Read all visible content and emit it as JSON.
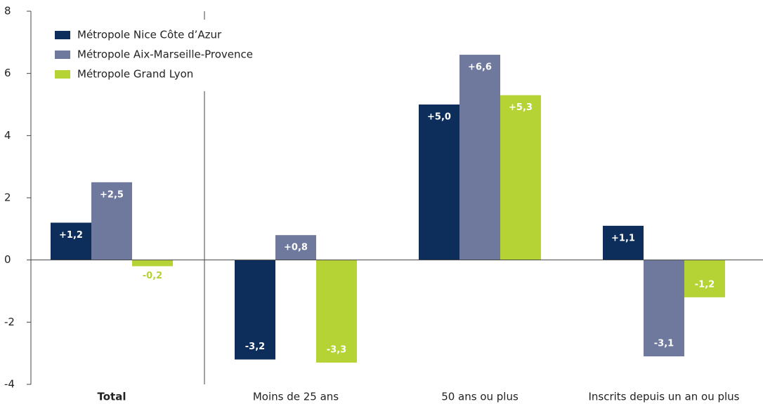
{
  "chart_data": {
    "type": "bar",
    "categories": [
      "Total",
      "Moins de 25 ans",
      "50 ans ou plus",
      "Inscrits depuis un an ou plus"
    ],
    "series": [
      {
        "name": "Métropole Nice Côte d’Azur",
        "color": "#0d2d5a",
        "values": [
          1.2,
          -3.2,
          5.0,
          1.1
        ],
        "value_labels": [
          "+1,2",
          "-3,2",
          "+5,0",
          "+1,1"
        ]
      },
      {
        "name": "Métropole Aix-Marseille-Provence",
        "color": "#6f799e",
        "values": [
          2.5,
          0.8,
          6.6,
          -3.1
        ],
        "value_labels": [
          "+2,5",
          "+0,8",
          "+6,6",
          "-3,1"
        ]
      },
      {
        "name": "Métropole Grand Lyon",
        "color": "#b5d334",
        "values": [
          -0.2,
          -3.3,
          5.3,
          -1.2
        ],
        "value_labels": [
          "-0,2",
          "-3,3",
          "+5,3",
          "-1,2"
        ]
      }
    ],
    "ylim": [
      -4,
      8
    ],
    "yticks": [
      -4,
      -2,
      0,
      2,
      4,
      6,
      8
    ],
    "grid": false,
    "legend": "top-left"
  }
}
